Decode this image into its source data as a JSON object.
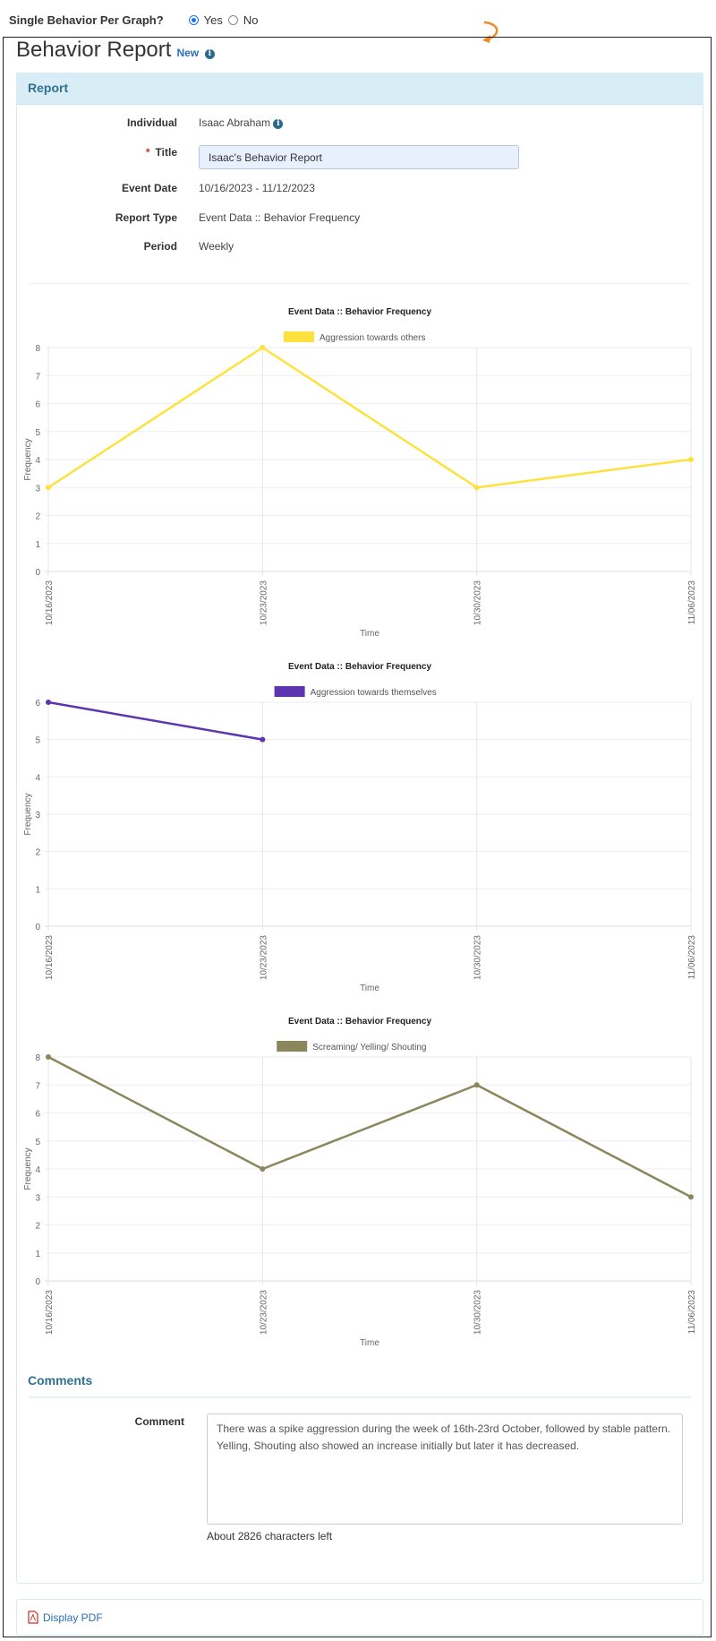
{
  "top": {
    "question": "Single Behavior Per Graph?",
    "options": [
      {
        "label": "Yes",
        "checked": true
      },
      {
        "label": "No",
        "checked": false
      }
    ]
  },
  "header": {
    "title": "Behavior Report",
    "badge": "New"
  },
  "report": {
    "section_title": "Report",
    "fields": {
      "individual_label": "Individual",
      "individual_value": "Isaac Abraham",
      "title_label": "Title",
      "title_value": "Isaac's Behavior Report",
      "event_date_label": "Event Date",
      "event_date_value": "10/16/2023 - 11/12/2023",
      "report_type_label": "Report Type",
      "report_type_value": "Event Data :: Behavior Frequency",
      "period_label": "Period",
      "period_value": "Weekly"
    }
  },
  "chart_data": [
    {
      "type": "line",
      "title": "Event Data :: Behavior Frequency",
      "xlabel": "Time",
      "ylabel": "Frequency",
      "categories": [
        "10/16/2023",
        "10/23/2023",
        "10/30/2023",
        "11/06/2023"
      ],
      "ylim": [
        0,
        8
      ],
      "grid": true,
      "legend": "top",
      "series": [
        {
          "name": "Aggression towards others",
          "color": "#fde23e",
          "values": [
            3,
            8,
            3,
            4
          ]
        }
      ]
    },
    {
      "type": "line",
      "title": "Event Data :: Behavior Frequency",
      "xlabel": "Time",
      "ylabel": "Frequency",
      "categories": [
        "10/16/2023",
        "10/23/2023",
        "10/30/2023",
        "11/06/2023"
      ],
      "ylim": [
        0,
        6
      ],
      "grid": true,
      "legend": "top",
      "series": [
        {
          "name": "Aggression towards themselves",
          "color": "#5e35b1",
          "values": [
            6,
            5,
            null,
            null
          ]
        }
      ]
    },
    {
      "type": "line",
      "title": "Event Data :: Behavior Frequency",
      "xlabel": "Time",
      "ylabel": "Frequency",
      "categories": [
        "10/16/2023",
        "10/23/2023",
        "10/30/2023",
        "11/06/2023"
      ],
      "ylim": [
        0,
        8
      ],
      "grid": true,
      "legend": "top",
      "series": [
        {
          "name": "Screaming/ Yelling/ Shouting",
          "color": "#8a875c",
          "values": [
            8,
            4,
            7,
            3
          ]
        }
      ]
    }
  ],
  "comments": {
    "section_title": "Comments",
    "label": "Comment",
    "value": "There was a spike aggression during the week of 16th-23rd October, followed by stable pattern. Yelling, Shouting also showed an increase initially but later it has decreased.",
    "chars_left": "About 2826 characters left"
  },
  "pdf": {
    "label": "Display PDF",
    "icon": "pdf-file-icon"
  },
  "colors": {
    "accent": "#31708f",
    "link": "#2a6ebb",
    "panel_header": "#d9edf7",
    "annotation_arrow": "#f08a24"
  }
}
